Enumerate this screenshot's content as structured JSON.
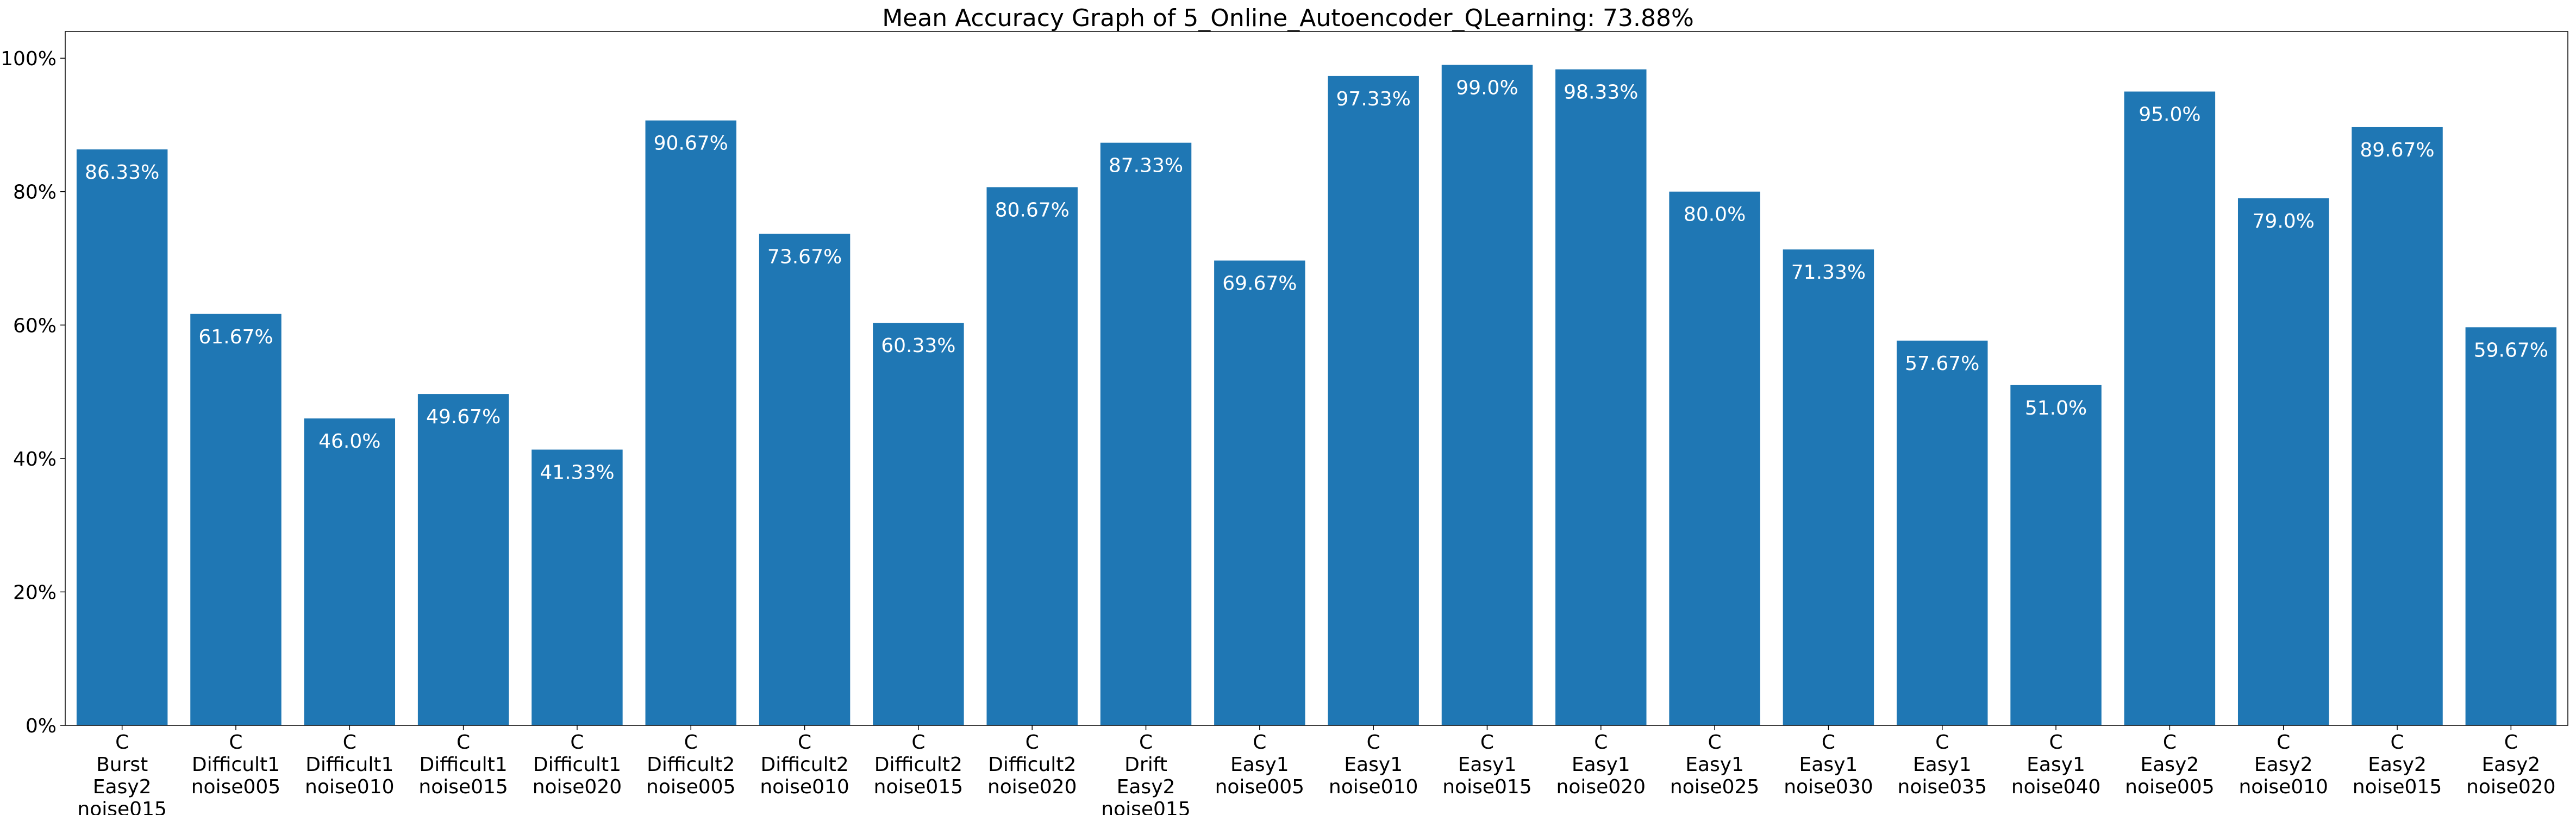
{
  "chart_data": {
    "type": "bar",
    "title": "Mean Accuracy Graph of 5_Online_Autoencoder_QLearning: 73.88%",
    "xlabel": "",
    "ylabel": "",
    "ylim": [
      0,
      104
    ],
    "y_ticks": [
      "0%",
      "20%",
      "40%",
      "60%",
      "80%",
      "100%"
    ],
    "y_tick_values": [
      0,
      20,
      40,
      60,
      80,
      100
    ],
    "grid": false,
    "bar_color": "#1f77b4",
    "categories": [
      [
        "C",
        "Burst",
        "Easy2",
        "noise015"
      ],
      [
        "C",
        "Difficult1",
        "noise005"
      ],
      [
        "C",
        "Difficult1",
        "noise010"
      ],
      [
        "C",
        "Difficult1",
        "noise015"
      ],
      [
        "C",
        "Difficult1",
        "noise020"
      ],
      [
        "C",
        "Difficult2",
        "noise005"
      ],
      [
        "C",
        "Difficult2",
        "noise010"
      ],
      [
        "C",
        "Difficult2",
        "noise015"
      ],
      [
        "C",
        "Difficult2",
        "noise020"
      ],
      [
        "C",
        "Drift",
        "Easy2",
        "noise015"
      ],
      [
        "C",
        "Easy1",
        "noise005"
      ],
      [
        "C",
        "Easy1",
        "noise010"
      ],
      [
        "C",
        "Easy1",
        "noise015"
      ],
      [
        "C",
        "Easy1",
        "noise020"
      ],
      [
        "C",
        "Easy1",
        "noise025"
      ],
      [
        "C",
        "Easy1",
        "noise030"
      ],
      [
        "C",
        "Easy1",
        "noise035"
      ],
      [
        "C",
        "Easy1",
        "noise040"
      ],
      [
        "C",
        "Easy2",
        "noise005"
      ],
      [
        "C",
        "Easy2",
        "noise010"
      ],
      [
        "C",
        "Easy2",
        "noise015"
      ],
      [
        "C",
        "Easy2",
        "noise020"
      ]
    ],
    "values": [
      86.33,
      61.67,
      46.0,
      49.67,
      41.33,
      90.67,
      73.67,
      60.33,
      80.67,
      87.33,
      69.67,
      97.33,
      99.0,
      98.33,
      80.0,
      71.33,
      57.67,
      51.0,
      95.0,
      79.0,
      89.67,
      59.67
    ],
    "data_labels": [
      "86.33%",
      "61.67%",
      "46.0%",
      "49.67%",
      "41.33%",
      "90.67%",
      "73.67%",
      "60.33%",
      "80.67%",
      "87.33%",
      "69.67%",
      "97.33%",
      "99.0%",
      "98.33%",
      "80.0%",
      "71.33%",
      "57.67%",
      "51.0%",
      "95.0%",
      "79.0%",
      "89.67%",
      "59.67%"
    ]
  }
}
